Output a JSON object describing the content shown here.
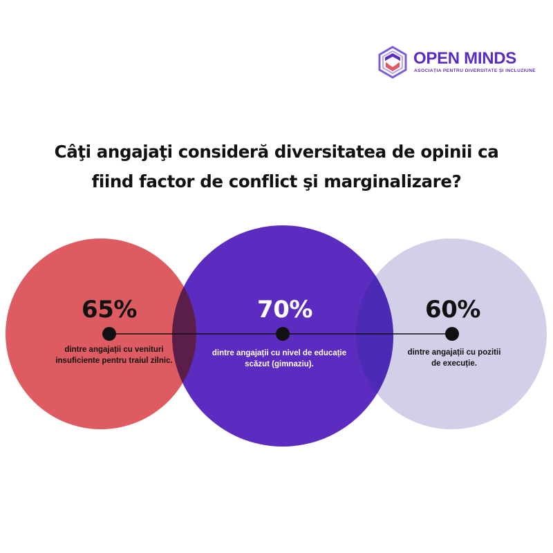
{
  "brand": {
    "name": "OPEN MINDS",
    "tagline": "ASOCIAȚIA PENTRU DIVERSITATE ȘI INCLUZIUNE",
    "icon": "open-minds-hexagon-logo",
    "color": "#5b2cc0"
  },
  "headline": {
    "line1": "Câţi angajaţi consideră diversitatea de opinii ca",
    "line2": "fiind factor de conflict şi marginalizare?"
  },
  "stats": [
    {
      "value": "65%",
      "label_line1": "dintre angajații cu venituri",
      "label_line2": "insuficiente pentru traiul zilnic.",
      "circle_color": "#de5b61",
      "text_color": "#111111"
    },
    {
      "value": "70%",
      "label_line1": "dintre angajații cu nivel de educație",
      "label_line2": "scăzut (gimnaziu).",
      "circle_color": "#5b2cbf",
      "text_color": "#ffffff"
    },
    {
      "value": "60%",
      "label_line1": "dintre angajații cu pozitii",
      "label_line2": "de execuție.",
      "circle_color": "#d3cfe8",
      "text_color": "#111111"
    }
  ],
  "overlap_colors": {
    "red_purple": "#5b1e49",
    "purple_lavender": "#4b2ab5"
  }
}
